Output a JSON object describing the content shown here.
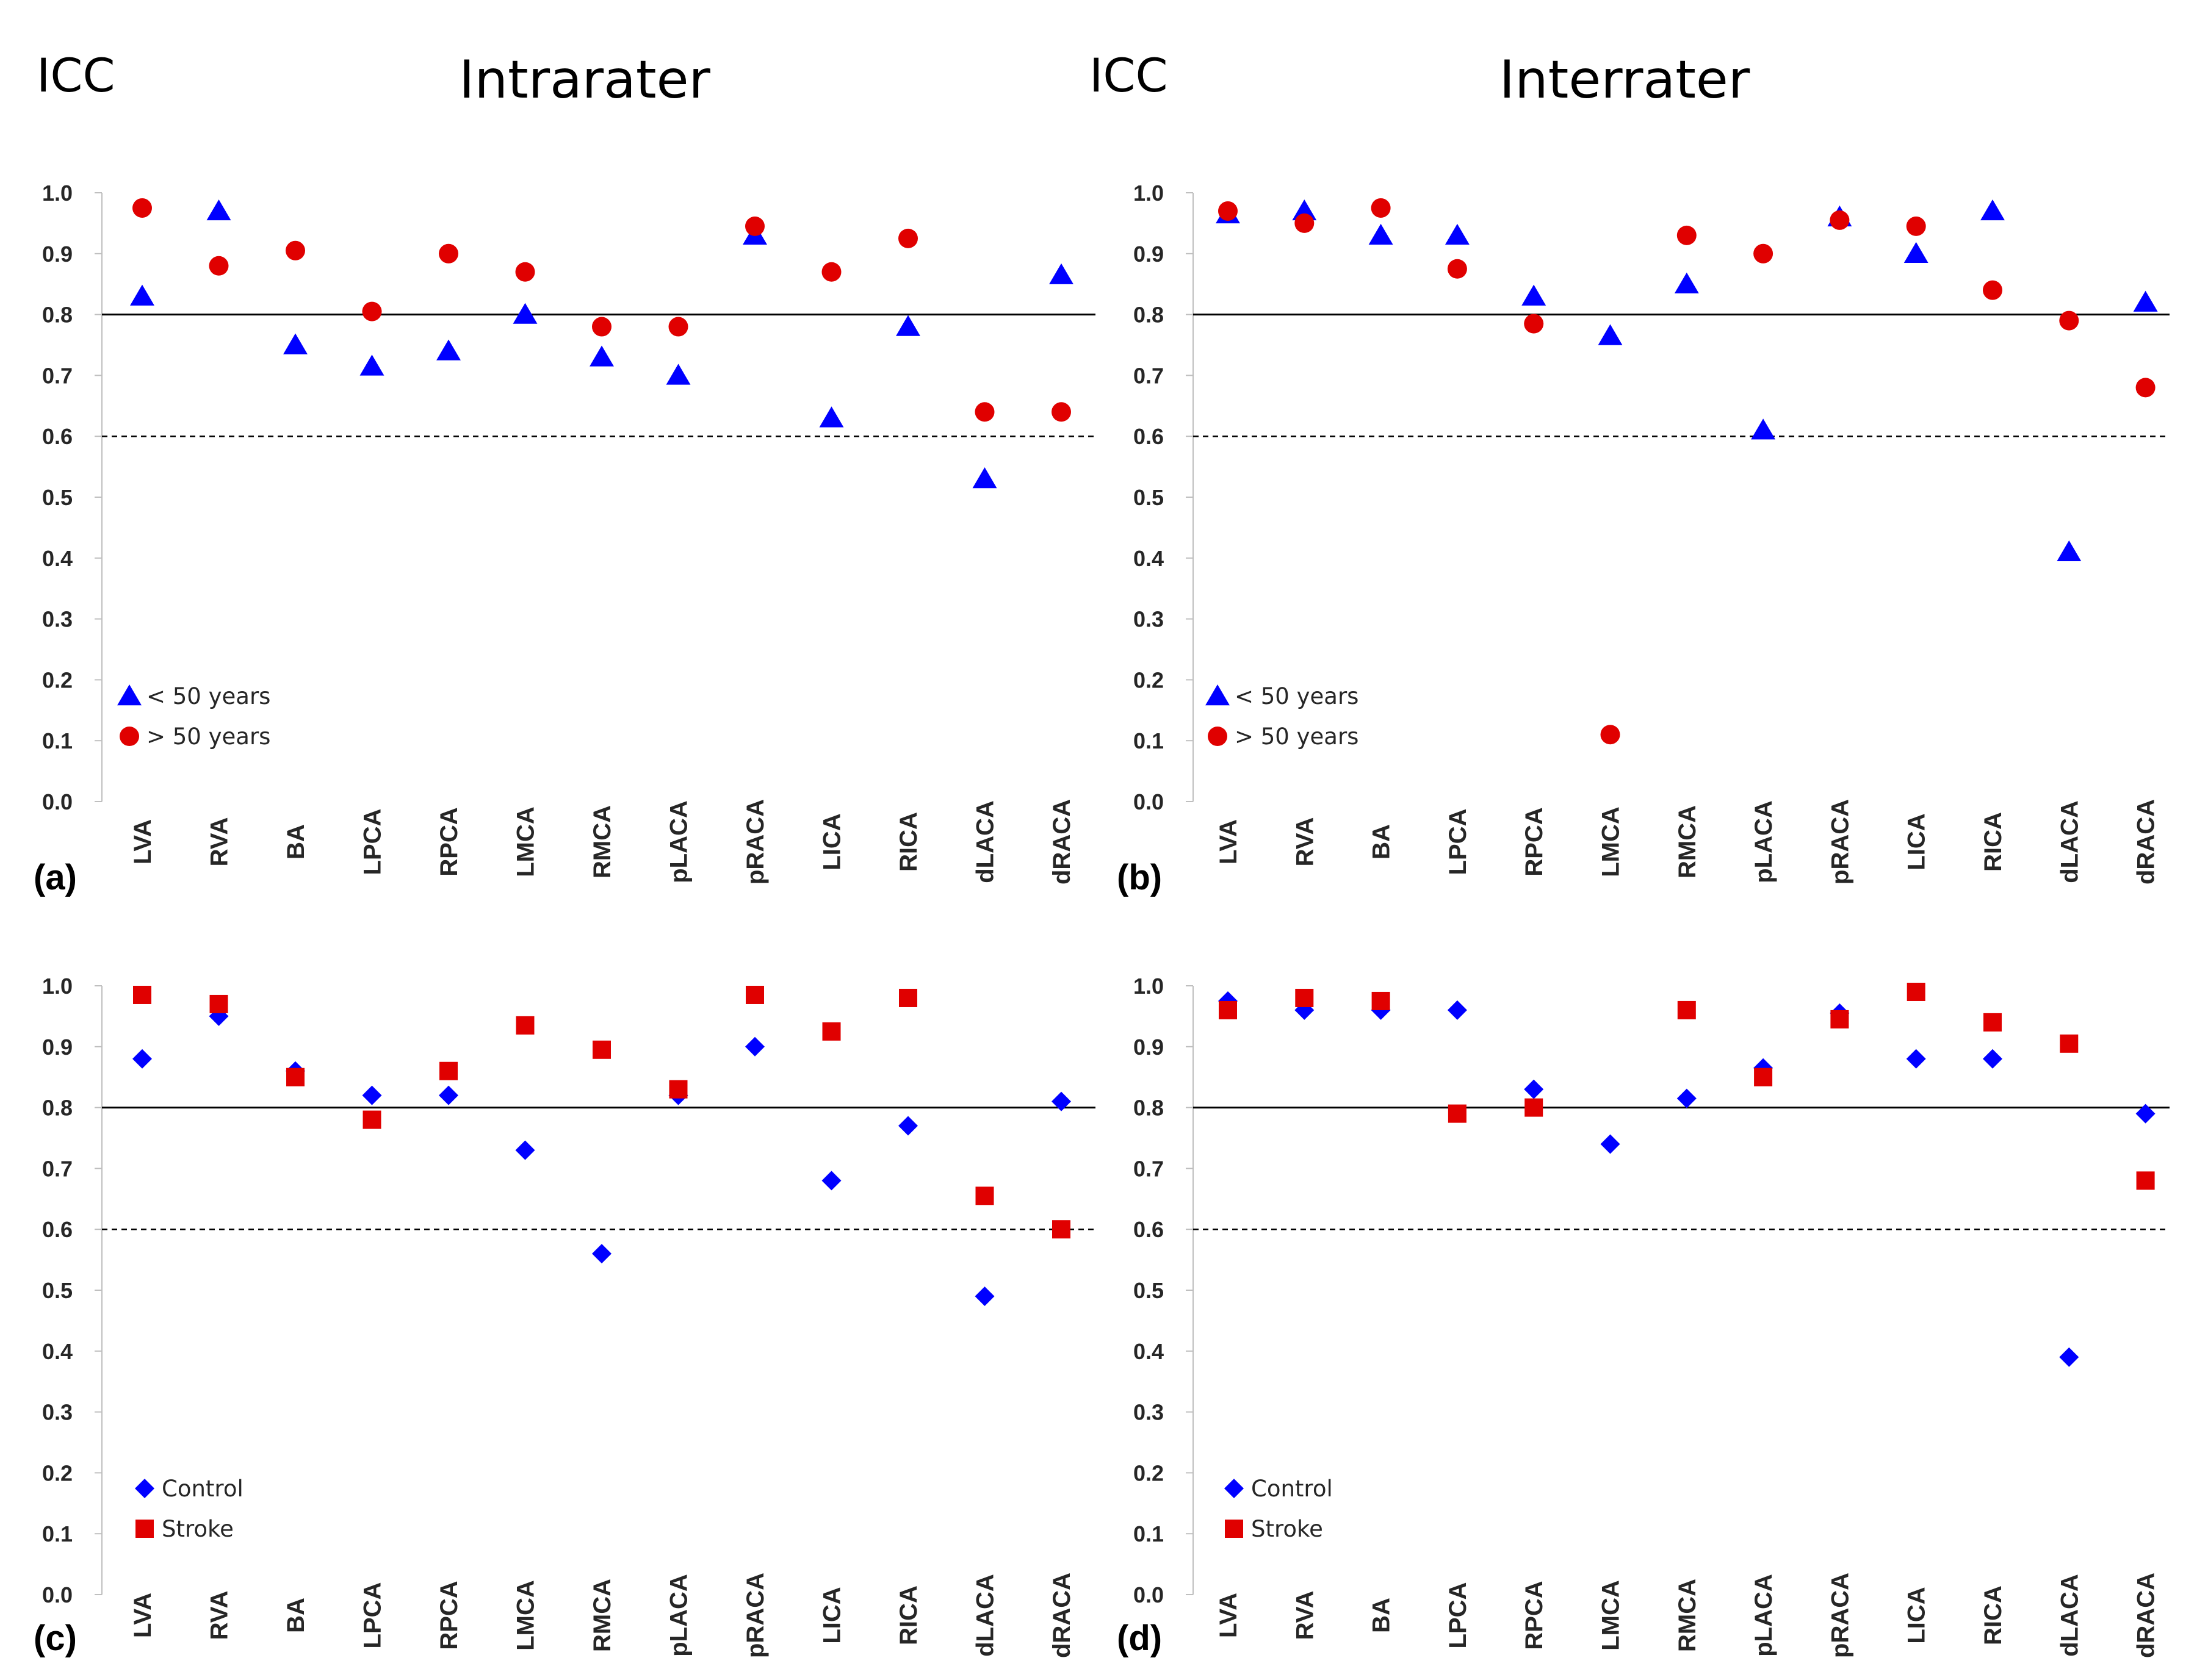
{
  "figure": {
    "left_y_label": "ICC",
    "right_y_label": "ICC",
    "left_title": "Intrarater",
    "right_title": "Interrater"
  },
  "chart_data": [
    {
      "type": "scatter",
      "panel_label": "(a)",
      "title": "Intrarater",
      "ylabel": "ICC",
      "ylim": [
        0,
        1
      ],
      "yticks": [
        "0.0",
        "0.1",
        "0.2",
        "0.3",
        "0.4",
        "0.5",
        "0.6",
        "0.7",
        "0.8",
        "0.9",
        "1.0"
      ],
      "categories": [
        "LVA",
        "RVA",
        "BA",
        "LPCA",
        "RPCA",
        "LMCA",
        "RMCA",
        "pLACA",
        "pRACA",
        "LICA",
        "RICA",
        "dLACA",
        "dRACA"
      ],
      "reference_lines": [
        {
          "y": 0.8,
          "style": "solid"
        },
        {
          "y": 0.6,
          "style": "dashed"
        }
      ],
      "series": [
        {
          "name": "< 50 years",
          "marker": "triangle",
          "color": "#0000ff",
          "values": [
            0.83,
            0.97,
            0.75,
            0.715,
            0.74,
            0.8,
            0.73,
            0.7,
            0.93,
            0.63,
            0.78,
            0.53,
            0.865
          ]
        },
        {
          "name": "> 50 years",
          "marker": "circle",
          "color": "#e00000",
          "values": [
            0.975,
            0.88,
            0.905,
            0.805,
            0.9,
            0.87,
            0.78,
            0.78,
            0.945,
            0.87,
            0.925,
            0.64,
            0.64
          ]
        }
      ]
    },
    {
      "type": "scatter",
      "panel_label": "(b)",
      "title": "Interrater",
      "ylabel": "ICC",
      "ylim": [
        0,
        1
      ],
      "yticks": [
        "0.0",
        "0.1",
        "0.2",
        "0.3",
        "0.4",
        "0.5",
        "0.6",
        "0.7",
        "0.8",
        "0.9",
        "1.0"
      ],
      "categories": [
        "LVA",
        "RVA",
        "BA",
        "LPCA",
        "RPCA",
        "LMCA",
        "RMCA",
        "pLACA",
        "pRACA",
        "LICA",
        "RICA",
        "dLACA",
        "dRACA"
      ],
      "reference_lines": [
        {
          "y": 0.8,
          "style": "solid"
        },
        {
          "y": 0.6,
          "style": "dashed"
        }
      ],
      "series": [
        {
          "name": "< 50 years",
          "marker": "triangle",
          "color": "#0000ff",
          "values": [
            0.965,
            0.97,
            0.93,
            0.93,
            0.83,
            0.765,
            0.85,
            0.61,
            0.96,
            0.9,
            0.97,
            0.41,
            0.82
          ]
        },
        {
          "name": "> 50 years",
          "marker": "circle",
          "color": "#e00000",
          "values": [
            0.97,
            0.95,
            0.975,
            0.875,
            0.785,
            0.11,
            0.93,
            0.9,
            0.955,
            0.945,
            0.84,
            0.79,
            0.68
          ]
        }
      ]
    },
    {
      "type": "scatter",
      "panel_label": "(c)",
      "title": "Intrarater",
      "ylabel": "ICC",
      "ylim": [
        0,
        1
      ],
      "yticks": [
        "0.0",
        "0.1",
        "0.2",
        "0.3",
        "0.4",
        "0.5",
        "0.6",
        "0.7",
        "0.8",
        "0.9",
        "1.0"
      ],
      "categories": [
        "LVA",
        "RVA",
        "BA",
        "LPCA",
        "RPCA",
        "LMCA",
        "RMCA",
        "pLACA",
        "pRACA",
        "LICA",
        "RICA",
        "dLACA",
        "dRACA"
      ],
      "reference_lines": [
        {
          "y": 0.8,
          "style": "solid"
        },
        {
          "y": 0.6,
          "style": "dashed"
        }
      ],
      "series": [
        {
          "name": "Control",
          "marker": "diamond",
          "color": "#0000ff",
          "values": [
            0.88,
            0.95,
            0.86,
            0.82,
            0.82,
            0.73,
            0.56,
            0.82,
            0.9,
            0.68,
            0.77,
            0.49,
            0.81
          ]
        },
        {
          "name": "Stroke",
          "marker": "square",
          "color": "#e00000",
          "values": [
            0.985,
            0.97,
            0.85,
            0.78,
            0.86,
            0.935,
            0.895,
            0.83,
            0.985,
            0.925,
            0.98,
            0.655,
            0.6
          ]
        }
      ]
    },
    {
      "type": "scatter",
      "panel_label": "(d)",
      "title": "Interrater",
      "ylabel": "ICC",
      "ylim": [
        0,
        1
      ],
      "yticks": [
        "0.0",
        "0.1",
        "0.2",
        "0.3",
        "0.4",
        "0.5",
        "0.6",
        "0.7",
        "0.8",
        "0.9",
        "1.0"
      ],
      "categories": [
        "LVA",
        "RVA",
        "BA",
        "LPCA",
        "RPCA",
        "LMCA",
        "RMCA",
        "pLACA",
        "pRACA",
        "LICA",
        "RICA",
        "dLACA",
        "dRACA"
      ],
      "reference_lines": [
        {
          "y": 0.8,
          "style": "solid"
        },
        {
          "y": 0.6,
          "style": "dashed"
        }
      ],
      "series": [
        {
          "name": "Control",
          "marker": "diamond",
          "color": "#0000ff",
          "values": [
            0.975,
            0.96,
            0.96,
            0.96,
            0.83,
            0.74,
            0.815,
            0.865,
            0.955,
            0.88,
            0.88,
            0.39,
            0.79
          ]
        },
        {
          "name": "Stroke",
          "marker": "square",
          "color": "#e00000",
          "values": [
            0.96,
            0.98,
            0.975,
            0.79,
            0.8,
            null,
            0.96,
            0.85,
            0.945,
            0.99,
            0.94,
            0.905,
            0.68
          ]
        }
      ]
    }
  ]
}
